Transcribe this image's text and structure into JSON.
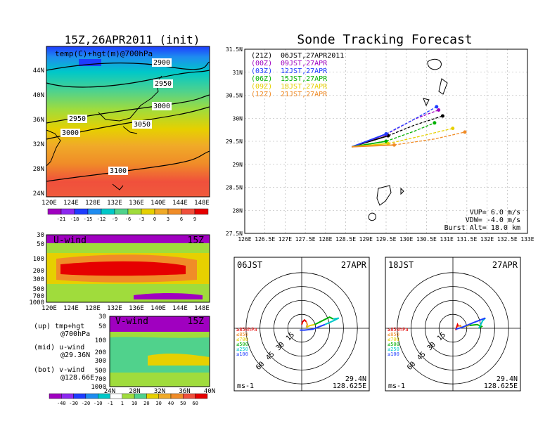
{
  "left": {
    "init_title": "15Z,26APR2011 (init)",
    "temp_map": {
      "label": "temp(C)+hgt(m)@700hPa",
      "lat_ticks": [
        "44N",
        "40N",
        "36N",
        "32N",
        "28N",
        "24N"
      ],
      "lon_ticks": [
        "120E",
        "124E",
        "128E",
        "132E",
        "136E",
        "140E",
        "144E",
        "148E"
      ],
      "height_contours": [
        "2900",
        "2950",
        "2950",
        "3000",
        "3000",
        "3050",
        "3100"
      ],
      "colorbar_labels": [
        "-21",
        "-18",
        "-15",
        "-12",
        "-9",
        "-6",
        "-3",
        "0",
        "3",
        "6",
        "9"
      ]
    },
    "u_wind": {
      "label": "U-wind",
      "time": "15Z",
      "p_ticks": [
        "30",
        "50",
        "100",
        "200",
        "300",
        "500",
        "700",
        "1000"
      ],
      "lon_ticks": [
        "120E",
        "124E",
        "128E",
        "132E",
        "136E",
        "140E",
        "144E",
        "148E"
      ]
    },
    "v_wind": {
      "label": "V-wind",
      "time": "15Z",
      "p_ticks": [
        "30",
        "50",
        "100",
        "200",
        "300",
        "500",
        "700",
        "1000"
      ],
      "lat_ticks": [
        "24N",
        "28N",
        "32N",
        "36N",
        "40N"
      ],
      "colorbar_labels": [
        "-40",
        "-30",
        "-20",
        "-10",
        "-1",
        "1",
        "10",
        "20",
        "30",
        "40",
        "50",
        "60"
      ]
    },
    "legend": [
      "(up) tmp+hgt",
      "@700hPa",
      "(mid) u-wind",
      "@29.36N",
      "(bot) v-wind",
      "@128.66E"
    ]
  },
  "tracking": {
    "title": "Sonde Tracking Forecast",
    "runs": [
      {
        "code": "(21Z)",
        "label": "06JST,27APR2011",
        "color": "#000000"
      },
      {
        "code": "(00Z)",
        "label": "09JST,27APR",
        "color": "#a000c0"
      },
      {
        "code": "(03Z)",
        "label": "12JST,27APR",
        "color": "#1e3cff"
      },
      {
        "code": "(06Z)",
        "label": "15JST,27APR",
        "color": "#00b000"
      },
      {
        "code": "(09Z)",
        "label": "18JST,27APR",
        "color": "#e6d000"
      },
      {
        "code": "(12Z)",
        "label": "21JST,27APR",
        "color": "#f08c28"
      }
    ],
    "params": [
      "VUP= 6.0 m/s",
      "VDW= -4.0 m/s",
      "Burst Alt= 18.0 km"
    ]
  },
  "chart_data": [
    {
      "type": "line",
      "title": "Sonde Tracking Forecast",
      "x_ticks": [
        "126E",
        "126.5E",
        "127E",
        "127.5E",
        "128E",
        "128.5E",
        "129E",
        "129.5E",
        "130E",
        "130.5E",
        "131E",
        "131.5E",
        "132E",
        "132.5E",
        "133E"
      ],
      "y_ticks": [
        "27.5N",
        "28N",
        "28.5N",
        "29N",
        "29.5N",
        "30N",
        "30.5N",
        "31N",
        "31.5N"
      ],
      "xlim": [
        126,
        133
      ],
      "ylim": [
        27.5,
        31.5
      ],
      "grid": true,
      "launch": [
        128.65,
        29.38
      ],
      "series": [
        {
          "name": "(21Z) 06JST,27APR2011",
          "color": "#000000",
          "points": [
            [
              128.65,
              29.38
            ],
            [
              129.55,
              29.62
            ],
            [
              130.2,
              29.85
            ],
            [
              130.9,
              30.05
            ]
          ]
        },
        {
          "name": "(00Z) 09JST,27APR",
          "color": "#a000c0",
          "points": [
            [
              128.65,
              29.38
            ],
            [
              129.5,
              29.65
            ],
            [
              130.2,
              29.98
            ],
            [
              130.8,
              30.18
            ]
          ]
        },
        {
          "name": "(03Z) 12JST,27APR",
          "color": "#1e3cff",
          "points": [
            [
              128.65,
              29.38
            ],
            [
              129.5,
              29.66
            ],
            [
              130.2,
              29.98
            ],
            [
              130.75,
              30.25
            ]
          ]
        },
        {
          "name": "(06Z) 15JST,27APR",
          "color": "#00b000",
          "points": [
            [
              128.65,
              29.38
            ],
            [
              129.5,
              29.5
            ],
            [
              130.2,
              29.72
            ],
            [
              130.7,
              29.9
            ]
          ]
        },
        {
          "name": "(09Z) 18JST,27APR",
          "color": "#e6d000",
          "points": [
            [
              128.65,
              29.38
            ],
            [
              129.55,
              29.45
            ],
            [
              130.4,
              29.62
            ],
            [
              131.15,
              29.78
            ]
          ]
        },
        {
          "name": "(12Z) 21JST,27APR",
          "color": "#f08c28",
          "points": [
            [
              128.65,
              29.38
            ],
            [
              129.7,
              29.42
            ],
            [
              130.7,
              29.55
            ],
            [
              131.45,
              29.7
            ]
          ]
        }
      ]
    }
  ],
  "hodographs": [
    {
      "time": "06JST",
      "date": "27APR",
      "lat": "29.4N",
      "lon": "128.625E",
      "unit": "ms-1",
      "rings": [
        "15",
        "30",
        "45",
        "60"
      ],
      "levels": [
        {
          "label": "≥850hPa",
          "color": "#e60000"
        },
        {
          "label": "≤850",
          "color": "#f08c28"
        },
        {
          "label": "≤700",
          "color": "#e6d000"
        },
        {
          "label": "≤500",
          "color": "#00b000"
        },
        {
          "label": "≤250",
          "color": "#00c8c8"
        },
        {
          "label": "≤100",
          "color": "#1e3cff"
        }
      ],
      "segments": [
        {
          "color": "#e60000",
          "points": [
            [
              0,
              4
            ],
            [
              1,
              7
            ],
            [
              3,
              9
            ],
            [
              5,
              7
            ]
          ]
        },
        {
          "color": "#f08c28",
          "points": [
            [
              5,
              7
            ],
            [
              6,
              4
            ],
            [
              5,
              1
            ]
          ]
        },
        {
          "color": "#e6d000",
          "points": [
            [
              5,
              1
            ],
            [
              9,
              3
            ],
            [
              14,
              4
            ]
          ]
        },
        {
          "color": "#00b000",
          "points": [
            [
              14,
              4
            ],
            [
              22,
              8
            ],
            [
              30,
              12
            ],
            [
              34,
              10
            ]
          ]
        },
        {
          "color": "#00c8c8",
          "points": [
            [
              34,
              10
            ],
            [
              40,
              11
            ],
            [
              34,
              8
            ],
            [
              25,
              4
            ]
          ]
        },
        {
          "color": "#1e3cff",
          "points": [
            [
              25,
              4
            ],
            [
              12,
              -1
            ],
            [
              3,
              -2
            ],
            [
              -2,
              -2
            ]
          ]
        }
      ]
    },
    {
      "time": "18JST",
      "date": "27APR",
      "lat": "29.4N",
      "lon": "128.625E",
      "unit": "ms-1",
      "rings": [
        "15",
        "30",
        "45",
        "60"
      ],
      "levels": [
        {
          "label": "≥850hPa",
          "color": "#e60000"
        },
        {
          "label": "≤850",
          "color": "#f08c28"
        },
        {
          "label": "≤700",
          "color": "#e6d000"
        },
        {
          "label": "≤500",
          "color": "#00b000"
        },
        {
          "label": "≤250",
          "color": "#00c8c8"
        },
        {
          "label": "≤100",
          "color": "#1e3cff"
        }
      ],
      "segments": [
        {
          "color": "#e60000",
          "points": [
            [
              3,
              -2
            ],
            [
              4,
              1
            ],
            [
              5,
              4
            ],
            [
              6,
              2
            ]
          ]
        },
        {
          "color": "#f08c28",
          "points": [
            [
              6,
              2
            ],
            [
              8,
              3
            ],
            [
              9,
              1
            ]
          ]
        },
        {
          "color": "#e6d000",
          "points": [
            [
              9,
              1
            ],
            [
              13,
              2
            ],
            [
              18,
              3
            ]
          ]
        },
        {
          "color": "#00b000",
          "points": [
            [
              18,
              3
            ],
            [
              26,
              4
            ],
            [
              31,
              2
            ],
            [
              28,
              0
            ]
          ]
        },
        {
          "color": "#00c8c8",
          "points": [
            [
              28,
              0
            ],
            [
              32,
              8
            ],
            [
              35,
              11
            ]
          ]
        },
        {
          "color": "#1e3cff",
          "points": [
            [
              35,
              11
            ],
            [
              22,
              6
            ],
            [
              10,
              1
            ],
            [
              3,
              -1
            ]
          ]
        }
      ]
    }
  ]
}
